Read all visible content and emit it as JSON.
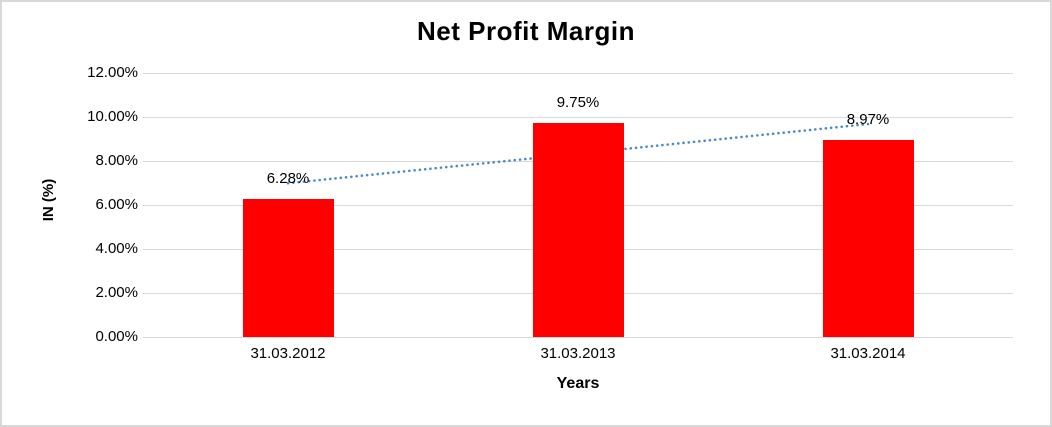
{
  "chart_data": {
    "type": "bar",
    "title": "Net Profit Margin",
    "xlabel": "Years",
    "ylabel": "IN (%)",
    "categories": [
      "31.03.2012",
      "31.03.2013",
      "31.03.2014"
    ],
    "series": [
      {
        "name": "Net Profit Margin",
        "type": "bar",
        "color": "#ff0000",
        "values": [
          6.28,
          9.75,
          8.97
        ],
        "data_labels": [
          "6.28%",
          "9.75%",
          "8.97%"
        ]
      },
      {
        "name": "linear-trendline",
        "type": "dotted-line",
        "color": "#4a89c8",
        "values": [
          6.99,
          8.33,
          9.68
        ]
      }
    ],
    "ylim": [
      0,
      12
    ],
    "ytick_step": 2,
    "ytick_labels": [
      "0.00%",
      "2.00%",
      "4.00%",
      "6.00%",
      "8.00%",
      "10.00%",
      "12.00%"
    ],
    "grid": true,
    "legend": "none",
    "colors": {
      "bar": "#ff0000",
      "trendline": "#4a89c8",
      "gridline": "#d9d9d9",
      "text": "#000000",
      "frame_border": "#d8d8d8",
      "background": "#ffffff"
    }
  }
}
